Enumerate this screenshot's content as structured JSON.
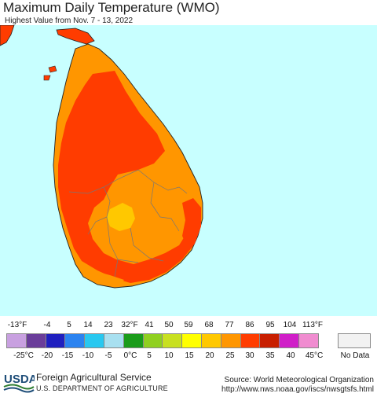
{
  "header": {
    "title": "Maximum Daily Temperature (WMO)",
    "subtitle": "Highest Value from Nov. 7 - 13, 2022"
  },
  "legend": {
    "fahrenheit_labels": [
      "-13°F",
      "-4",
      "5",
      "14",
      "23",
      "32°F",
      "41",
      "50",
      "59",
      "68",
      "77",
      "86",
      "95",
      "104",
      "113°F"
    ],
    "celsius_labels": [
      "-25°C",
      "-20",
      "-15",
      "-10",
      "-5",
      "0°C",
      "5",
      "10",
      "15",
      "20",
      "25",
      "30",
      "35",
      "40",
      "45°C"
    ],
    "colors": [
      "#c8a0e0",
      "#6a3d9a",
      "#1f1fbf",
      "#2b83f0",
      "#28c8f0",
      "#a8e0f0",
      "#1a9c1a",
      "#90d020",
      "#c8e020",
      "#ffff00",
      "#ffc800",
      "#ff9600",
      "#ff3c00",
      "#c81e00",
      "#d01ec8",
      "#f08cd0"
    ],
    "no_data_label": "No Data",
    "no_data_color": "#f2f2f2"
  },
  "map": {
    "ocean_color": "#c8ffff",
    "region": "Sri Lanka"
  },
  "footer": {
    "logo_text": "USDA",
    "org_name": "Foreign Agricultural Service",
    "dept_name": "U.S. DEPARTMENT OF AGRICULTURE",
    "source": "Source: World Meteorological Organization",
    "source_url": "http://www.nws.noaa.gov/iscs/nwsgtsfs.html"
  }
}
